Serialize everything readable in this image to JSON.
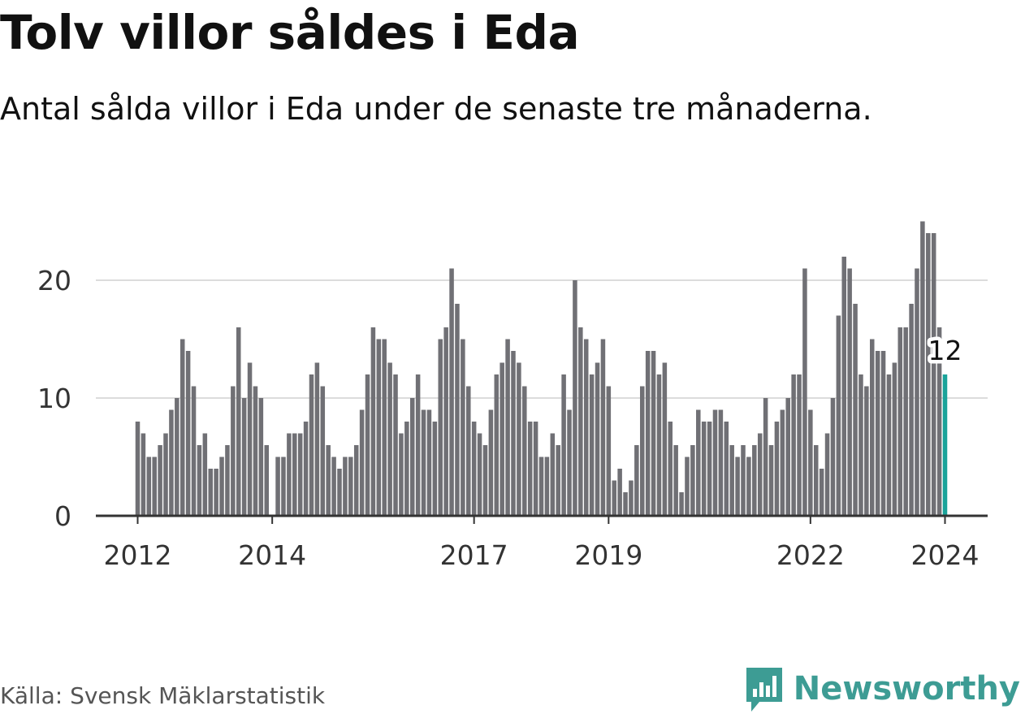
{
  "title": "Tolv villor såldes i Eda",
  "subtitle": "Antal sålda villor i Eda under de senaste tre månaderna.",
  "source": "Källa: Svensk Mäklarstatistik",
  "brand": {
    "name": "Newsworthy",
    "color": "#3d9c94"
  },
  "colors": {
    "bar": "#707075",
    "highlight": "#1aa39a",
    "grid": "#dcdcdc",
    "axis": "#333333"
  },
  "chart_data": {
    "type": "bar",
    "x_start": "2012-01",
    "values": [
      8,
      7,
      5,
      5,
      6,
      7,
      9,
      10,
      15,
      14,
      11,
      6,
      7,
      4,
      4,
      5,
      6,
      11,
      16,
      10,
      13,
      11,
      10,
      6,
      0,
      5,
      5,
      7,
      7,
      7,
      8,
      12,
      13,
      11,
      6,
      5,
      4,
      5,
      5,
      6,
      9,
      12,
      16,
      15,
      15,
      13,
      12,
      7,
      8,
      10,
      12,
      9,
      9,
      8,
      15,
      16,
      21,
      18,
      15,
      11,
      8,
      7,
      6,
      9,
      12,
      13,
      15,
      14,
      13,
      11,
      8,
      8,
      5,
      5,
      7,
      6,
      12,
      9,
      20,
      16,
      15,
      12,
      13,
      15,
      11,
      3,
      4,
      2,
      3,
      6,
      11,
      14,
      14,
      12,
      13,
      8,
      6,
      2,
      5,
      6,
      9,
      8,
      8,
      9,
      9,
      8,
      6,
      5,
      6,
      5,
      6,
      7,
      10,
      6,
      8,
      9,
      10,
      12,
      12,
      21,
      9,
      6,
      4,
      7,
      10,
      17,
      22,
      21,
      18,
      12,
      11,
      15,
      14,
      14,
      12,
      13,
      16,
      16,
      18,
      21,
      25,
      24,
      24,
      16,
      12
    ],
    "highlight_last": true,
    "highlight_label": "12",
    "x_ticks": [
      {
        "label": "2012",
        "index": 0
      },
      {
        "label": "2014",
        "index": 24
      },
      {
        "label": "2017",
        "index": 60
      },
      {
        "label": "2019",
        "index": 84
      },
      {
        "label": "2022",
        "index": 120
      },
      {
        "label": "2024",
        "index": 144
      }
    ],
    "y_ticks": [
      0,
      10,
      20
    ],
    "ylim": [
      0,
      26
    ],
    "grid": true,
    "xlabel": "",
    "ylabel": ""
  }
}
